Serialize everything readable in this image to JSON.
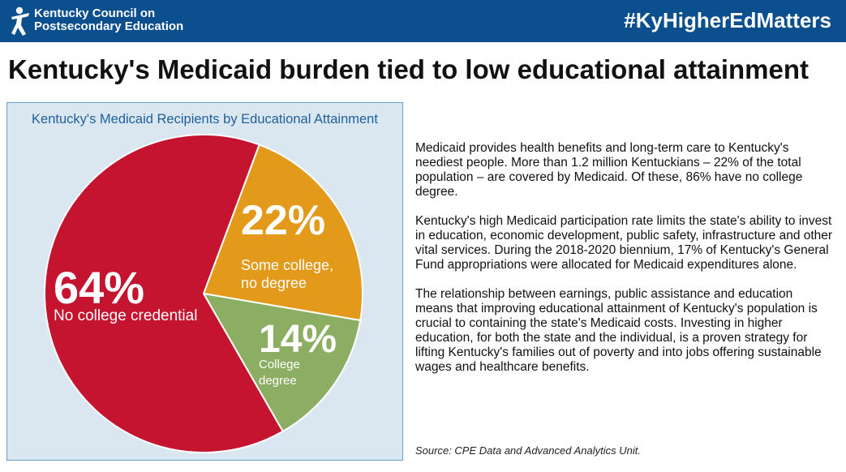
{
  "header": {
    "org_line1": "Kentucky Council on",
    "org_line2": "Postsecondary Education",
    "hashtag": "#KyHigherEdMatters"
  },
  "headline": "Kentucky's Medicaid burden tied to low educational attainment",
  "paragraphs": [
    "Medicaid provides health benefits and long-term care to Kentucky's neediest people. More than 1.2 million Kentuckians – 22% of the total population – are covered by Medicaid. Of these, 86% have no college degree.",
    "Kentucky's high Medicaid participation rate limits the state's ability to invest in education, economic development, public safety, infrastructure and other vital services.  During the 2018-2020 biennium, 17% of Kentucky's General Fund appropriations were allocated for Medicaid expenditures alone.",
    "The relationship between earnings, public assistance and education means that improving educational attainment of Kentucky's population is crucial to containing the state's Medicaid costs. Investing in higher education, for both the state and the individual, is a proven strategy for lifting Kentucky's families out of poverty and into jobs offering sustainable wages and healthcare benefits."
  ],
  "source": "Source: CPE Data and Advanced Analytics Unit.",
  "chart_data": {
    "type": "pie",
    "title": "Kentucky's Medicaid Recipients by Educational Attainment",
    "slices": [
      {
        "label": "Some college, no degree",
        "value": 22,
        "percent_label": "22%",
        "label_lines": [
          "Some college,",
          "no degree"
        ],
        "color": "#e39a1b"
      },
      {
        "label": "College degree",
        "value": 14,
        "percent_label": "14%",
        "label_lines": [
          "College",
          "degree"
        ],
        "color": "#8cae63"
      },
      {
        "label": "No college credential",
        "value": 64,
        "percent_label": "64%",
        "label_lines": [
          "No college credential"
        ],
        "color": "#c4142f"
      }
    ],
    "start_angle_deg": -69.5,
    "direction": "clockwise",
    "legend": "none"
  },
  "colors": {
    "header_bg": "#0b4f8f",
    "chart_panel_bg": "#dbe7f0",
    "chart_title": "#1f5f9a"
  },
  "icons": {
    "logo": "person-figure-icon"
  }
}
